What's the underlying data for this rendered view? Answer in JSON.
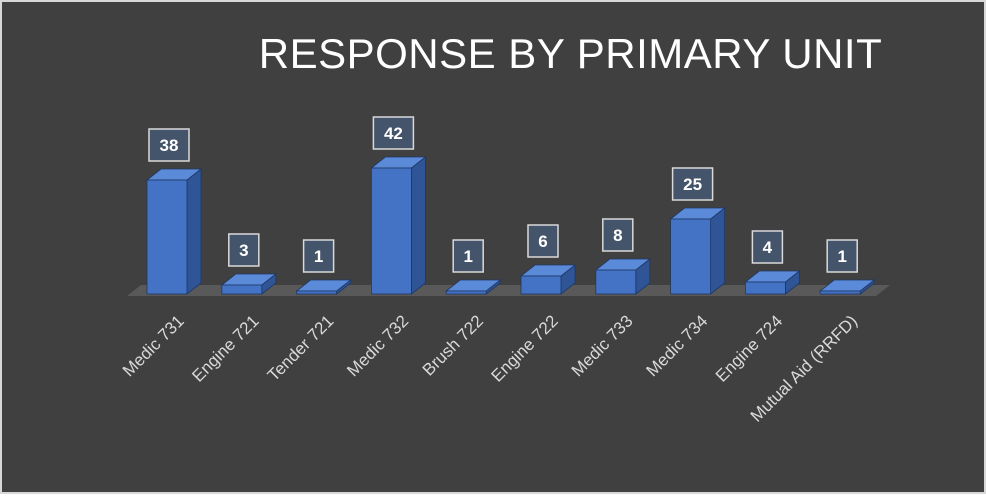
{
  "colors": {
    "background": "#404040",
    "bar_front": "#4472C4",
    "bar_side": "#2F5597",
    "bar_top": "#5B8AD8",
    "floor": "#595959",
    "label_box": "#44546A",
    "label_border": "#d9d9d9",
    "text": "#ffffff",
    "axis_text": "#d9d9d9"
  },
  "chart_data": {
    "type": "bar",
    "title": "RESPONSE BY PRIMARY UNIT",
    "categories": [
      "Medic 731",
      "Engine 721",
      "Tender 721",
      "Medic 732",
      "Brush 722",
      "Engine 722",
      "Medic 733",
      "Medic 734",
      "Engine 724",
      "Mutual Aid (RRFD)"
    ],
    "values": [
      38,
      3,
      1,
      42,
      1,
      6,
      8,
      25,
      4,
      1
    ],
    "xlabel": "",
    "ylabel": "",
    "ylim": [
      0,
      42
    ],
    "grid": false,
    "legend": "none",
    "three_d": true,
    "data_labels": true
  }
}
